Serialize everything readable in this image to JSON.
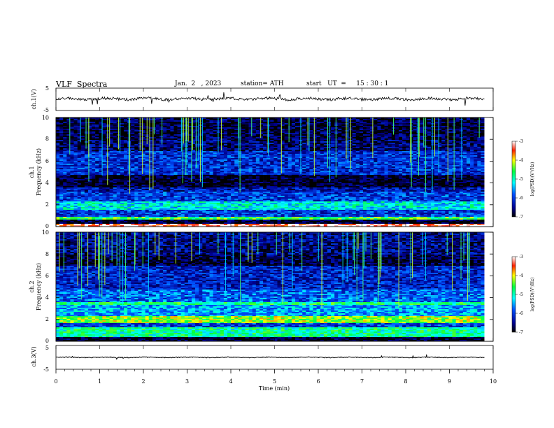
{
  "header": {
    "title": "VLF  Spectra",
    "date": "Jan.  2   , 2023",
    "station": "station= ATH",
    "start": "start   UT  =     15 : 30 : 1"
  },
  "chart_data": [
    {
      "type": "line",
      "panel": "ch1-waveform",
      "ylabel": "ch.1(V)",
      "ylim": [
        -5,
        5
      ],
      "yticks": [
        "5",
        "-5"
      ],
      "x_range_min": [
        0,
        9.8
      ],
      "waveform_level_V": 0.2,
      "noise_amplitude_V": 1.2
    },
    {
      "type": "heatmap",
      "panel": "ch1-spectrogram",
      "ylabel": "Frequency  (kHz)",
      "channel_label": "ch.1",
      "ylim": [
        0,
        10
      ],
      "yticks": [
        "0",
        "2",
        "4",
        "6",
        "8",
        "10"
      ],
      "x_range_min": [
        0,
        9.8
      ],
      "colorbar": {
        "label": "log(PSD)(V²/Hz)",
        "range": [
          -7,
          -3
        ],
        "ticks": [
          "-3",
          "-4",
          "-5",
          "-6",
          "-7"
        ]
      },
      "bands_kHz_log_psd": [
        {
          "from": 0.0,
          "to": 0.3,
          "value": -3.2
        },
        {
          "from": 0.3,
          "to": 0.6,
          "value": -6.9
        },
        {
          "from": 0.6,
          "to": 0.9,
          "value": -4.6
        },
        {
          "from": 0.9,
          "to": 1.6,
          "value": -6.0
        },
        {
          "from": 1.6,
          "to": 2.3,
          "value": -5.2
        },
        {
          "from": 2.3,
          "to": 3.2,
          "value": -6.0
        },
        {
          "from": 3.2,
          "to": 3.6,
          "value": -6.3
        },
        {
          "from": 3.6,
          "to": 4.7,
          "value": -6.9
        },
        {
          "from": 4.7,
          "to": 6.9,
          "value": -6.1
        },
        {
          "from": 6.9,
          "to": 8.0,
          "value": -6.6
        },
        {
          "from": 8.0,
          "to": 10.0,
          "value": -6.8
        }
      ]
    },
    {
      "type": "heatmap",
      "panel": "ch2-spectrogram",
      "ylabel": "Frequency  (kHz)",
      "channel_label": "ch.2",
      "ylim": [
        0,
        10
      ],
      "yticks": [
        "0",
        "2",
        "4",
        "6",
        "8",
        "10"
      ],
      "x_range_min": [
        0,
        9.8
      ],
      "colorbar": {
        "label": "log(PSD)(V²/Hz)",
        "range": [
          -7,
          -3
        ],
        "ticks": [
          "-3",
          "-4",
          "-5",
          "-6",
          "-7"
        ]
      },
      "bands_kHz_log_psd": [
        {
          "from": 0.0,
          "to": 0.4,
          "value": -6.9
        },
        {
          "from": 0.4,
          "to": 1.3,
          "value": -4.9
        },
        {
          "from": 1.3,
          "to": 1.7,
          "value": -6.0
        },
        {
          "from": 1.7,
          "to": 2.3,
          "value": -4.3
        },
        {
          "from": 2.3,
          "to": 3.3,
          "value": -5.5
        },
        {
          "from": 3.3,
          "to": 3.6,
          "value": -4.8
        },
        {
          "from": 3.6,
          "to": 4.8,
          "value": -5.8
        },
        {
          "from": 4.8,
          "to": 6.9,
          "value": -6.2
        },
        {
          "from": 6.9,
          "to": 8.0,
          "value": -6.8
        },
        {
          "from": 8.0,
          "to": 10.0,
          "value": -6.5
        }
      ]
    },
    {
      "type": "line",
      "panel": "ch3-waveform",
      "ylabel": "ch.3(V)",
      "ylim": [
        -5,
        5
      ],
      "yticks": [
        "5",
        "-5"
      ],
      "x_range_min": [
        0,
        9.8
      ],
      "waveform_level_V": 0.0,
      "noise_amplitude_V": 0.35,
      "xlabel": "Time  (min)",
      "xlim": [
        0,
        10
      ],
      "xticks": [
        "0",
        "1",
        "2",
        "3",
        "4",
        "5",
        "6",
        "7",
        "8",
        "9",
        "10"
      ]
    }
  ]
}
